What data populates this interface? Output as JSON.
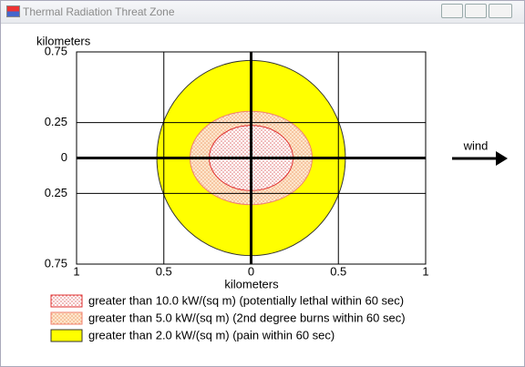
{
  "window": {
    "title": "Thermal Radiation Threat Zone"
  },
  "chart_data": {
    "type": "threat-zone",
    "ylabel": "kilometers",
    "xlabel": "kilometers",
    "annotation": "wind",
    "xlim": [
      -1,
      1
    ],
    "ylim": [
      -0.75,
      0.75
    ],
    "xticks": [
      {
        "value": -1,
        "label": "1"
      },
      {
        "value": -0.5,
        "label": "0.5"
      },
      0,
      0.5,
      1
    ],
    "yticks": [
      {
        "value": -0.75,
        "label": "0.75"
      },
      {
        "value": -0.25,
        "label": "0.25"
      },
      0,
      0.25,
      0.75
    ],
    "grid": true,
    "zones": [
      {
        "name": "greater than 10.0 kW/(sq m) (potentially lethal within 60 sec)",
        "color": "#f4c0c0",
        "stroke": "#e03030",
        "dotted": true,
        "rx": 0.24,
        "ry": 0.23
      },
      {
        "name": "greater than 5.0 kW/(sq m) (2nd degree burns within 60 sec)",
        "color": "#fad6ad",
        "stroke": "#f08070",
        "dotted": true,
        "rx": 0.35,
        "ry": 0.33
      },
      {
        "name": "greater than 2.0 kW/(sq m) (pain within 60 sec)",
        "color": "#ffff00",
        "stroke": "#333333",
        "dotted": false,
        "rx": 0.54,
        "ry": 0.69
      }
    ]
  }
}
